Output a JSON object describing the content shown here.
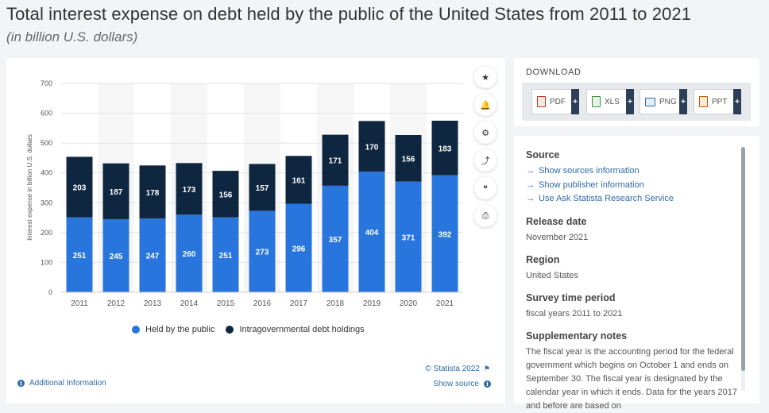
{
  "header": {
    "title": "Total interest expense on debt held by the public of the United States from 2011 to 2021",
    "subtitle": "(in billion U.S. dollars)"
  },
  "chart_data": {
    "type": "bar",
    "stacked": true,
    "categories": [
      "2011",
      "2012",
      "2013",
      "2014",
      "2015",
      "2016",
      "2017",
      "2018",
      "2019",
      "2020",
      "2021"
    ],
    "series": [
      {
        "name": "Held by the public",
        "color": "#2876dd",
        "values": [
          251,
          245,
          247,
          260,
          251,
          273,
          296,
          357,
          404,
          371,
          392
        ]
      },
      {
        "name": "Intragovernmental debt holdings",
        "color": "#0f2640",
        "values": [
          203,
          187,
          178,
          173,
          156,
          157,
          161,
          171,
          170,
          156,
          183
        ]
      }
    ],
    "ylabel": "Interest expense in billion U.S. dollars",
    "ylim": [
      0,
      700
    ],
    "yticks": [
      0,
      100,
      200,
      300,
      400,
      500,
      600,
      700
    ],
    "grid": true,
    "legend_position": "bottom"
  },
  "chart_tools": [
    {
      "name": "favorite",
      "icon": "star-icon",
      "glyph": "★"
    },
    {
      "name": "notify",
      "icon": "bell-icon",
      "glyph": "🔔"
    },
    {
      "name": "settings",
      "icon": "gear-icon",
      "glyph": "⚙"
    },
    {
      "name": "share",
      "icon": "share-icon",
      "glyph": "⤴"
    },
    {
      "name": "cite",
      "icon": "quote-icon",
      "glyph": "❝"
    },
    {
      "name": "print",
      "icon": "print-icon",
      "glyph": "⎙"
    }
  ],
  "footer": {
    "credit": "© Statista 2022",
    "additional_info": "Additional Information",
    "show_source": "Show source"
  },
  "download": {
    "title": "DOWNLOAD",
    "buttons": [
      {
        "label": "PDF",
        "icon": "pdf-file-icon"
      },
      {
        "label": "XLS",
        "icon": "xls-file-icon"
      },
      {
        "label": "PNG",
        "icon": "png-file-icon"
      },
      {
        "label": "PPT",
        "icon": "ppt-file-icon"
      }
    ]
  },
  "info": {
    "source_heading": "Source",
    "source_links": [
      "Show sources information",
      "Show publisher information",
      "Use Ask Statista Research Service"
    ],
    "release_heading": "Release date",
    "release_value": "November 2021",
    "region_heading": "Region",
    "region_value": "United States",
    "survey_heading": "Survey time period",
    "survey_value": "fiscal years 2011 to 2021",
    "notes_heading": "Supplementary notes",
    "notes_value": "The fiscal year is the accounting period for the federal government which begins on October 1 and ends on September 30. The fiscal year is designated by the calendar year in which it ends. Data for the years 2017 and before are based on"
  }
}
